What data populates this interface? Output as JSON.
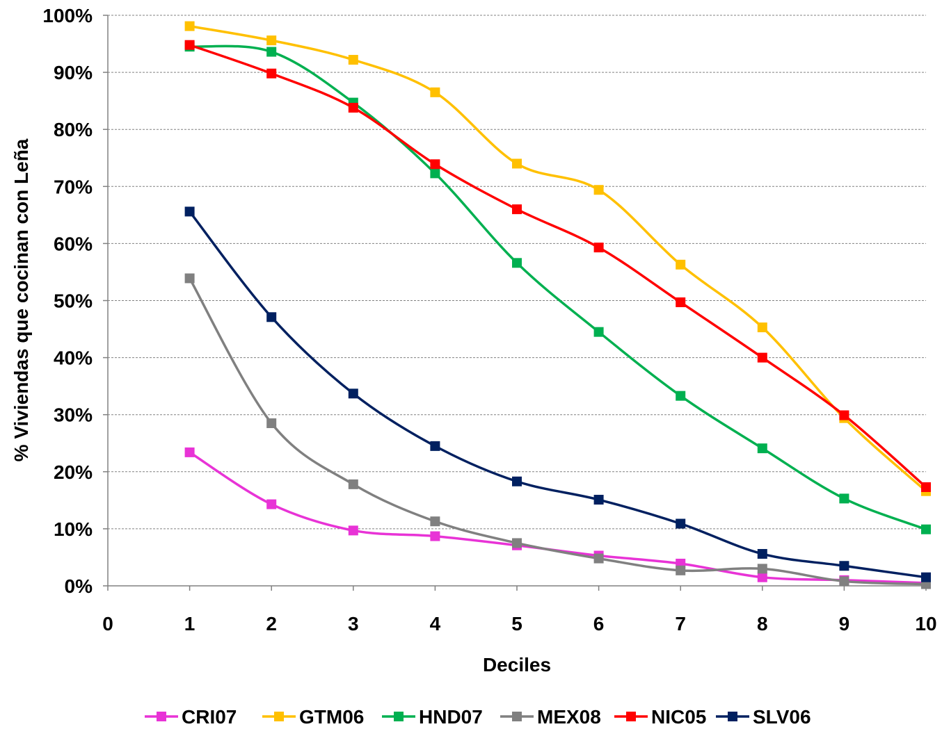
{
  "chart_data": {
    "type": "line",
    "title": "",
    "xlabel": "Deciles",
    "ylabel": "% Viviendas que cocinan con Leña",
    "xlim": [
      0,
      10
    ],
    "ylim": [
      0,
      100
    ],
    "x_ticks": [
      "0",
      "1",
      "2",
      "3",
      "4",
      "5",
      "6",
      "7",
      "8",
      "9",
      "10"
    ],
    "y_ticks": [
      "0%",
      "10%",
      "20%",
      "30%",
      "40%",
      "50%",
      "60%",
      "70%",
      "80%",
      "90%",
      "100%"
    ],
    "grid": "horizontal-dashed",
    "legend_position": "bottom",
    "smooth": true,
    "x": [
      1,
      2,
      3,
      4,
      5,
      6,
      7,
      8,
      9,
      10
    ],
    "series": [
      {
        "name": "CRI07",
        "color": "#E833D6",
        "values": [
          23.4,
          14.3,
          9.7,
          8.7,
          7.1,
          5.3,
          3.9,
          1.5,
          1.0,
          0.5
        ]
      },
      {
        "name": "GTM06",
        "color": "#FFC000",
        "values": [
          98.1,
          95.6,
          92.2,
          86.5,
          74.0,
          69.4,
          56.3,
          45.3,
          29.4,
          16.6
        ]
      },
      {
        "name": "HND07",
        "color": "#00B050",
        "values": [
          94.5,
          93.6,
          84.7,
          72.3,
          56.6,
          44.5,
          33.3,
          24.1,
          15.3,
          9.9
        ]
      },
      {
        "name": "MEX08",
        "color": "#808080",
        "values": [
          53.9,
          28.5,
          17.8,
          11.3,
          7.5,
          4.8,
          2.7,
          3.0,
          0.8,
          0.3
        ]
      },
      {
        "name": "NIC05",
        "color": "#FF0000",
        "values": [
          94.8,
          89.8,
          83.8,
          73.9,
          66.0,
          59.3,
          49.7,
          40.0,
          29.9,
          17.3
        ]
      },
      {
        "name": "SLV06",
        "color": "#002060",
        "values": [
          65.6,
          47.1,
          33.7,
          24.5,
          18.3,
          15.1,
          10.9,
          5.6,
          3.5,
          1.5
        ]
      }
    ]
  }
}
